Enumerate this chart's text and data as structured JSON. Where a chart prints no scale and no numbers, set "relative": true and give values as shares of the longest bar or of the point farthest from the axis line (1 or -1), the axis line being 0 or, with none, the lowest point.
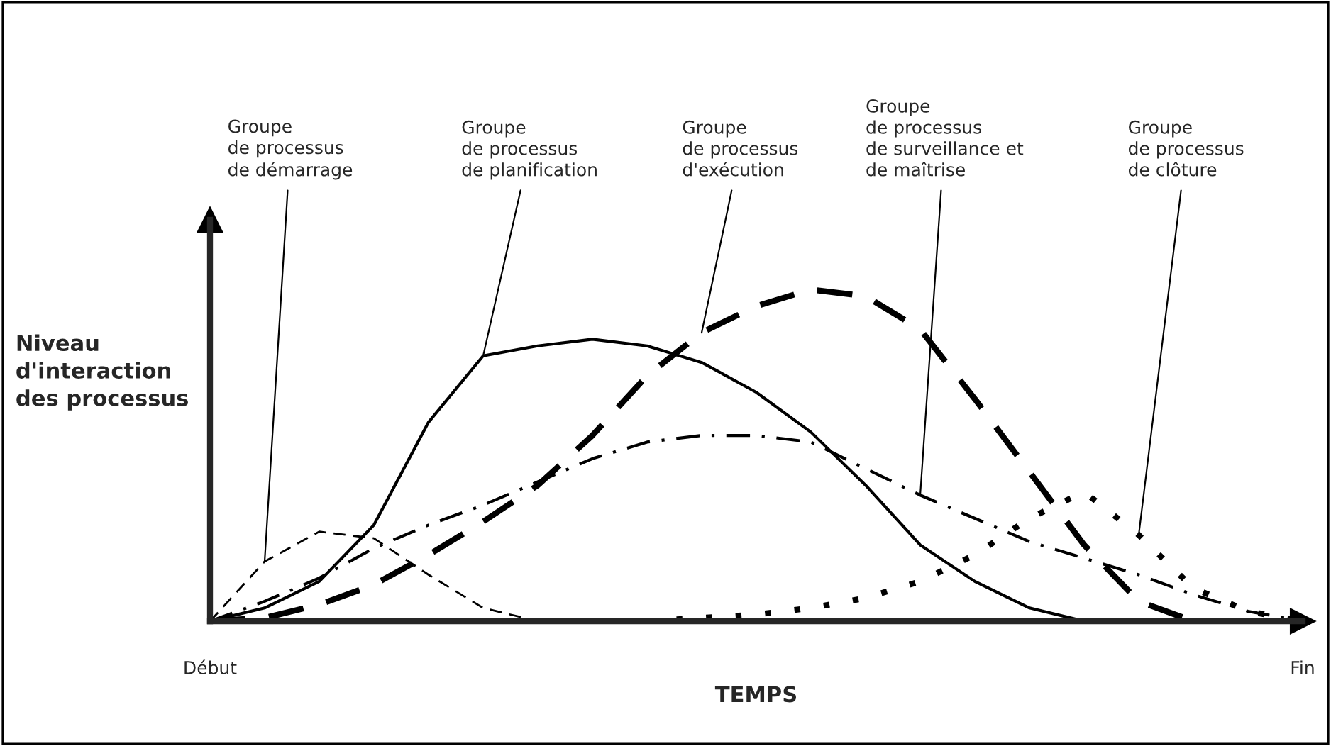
{
  "chart_data": {
    "type": "line",
    "relative": true,
    "xlabel": "TEMPS",
    "ylabel": "Niveau\nd'interaction\ndes processus",
    "categories": [
      "Début",
      null,
      null,
      null,
      null,
      null,
      null,
      null,
      null,
      null,
      null,
      null,
      null,
      null,
      null,
      null,
      null,
      null,
      null,
      null,
      "Fin"
    ],
    "grid": false,
    "marker": "none",
    "series": [
      {
        "color": "#000000",
        "line_style": "dashed",
        "values": [
          0,
          0.18,
          0.27,
          0.25,
          0.14,
          0.04,
          0,
          null,
          null,
          null,
          null,
          null,
          null,
          null,
          null,
          null,
          null,
          null,
          null,
          null,
          null
        ]
      },
      {
        "color": "#000000",
        "line_style": "solid",
        "values": [
          0,
          0.04,
          0.12,
          0.29,
          0.6,
          0.8,
          0.83,
          0.85,
          0.83,
          0.78,
          0.69,
          0.57,
          0.41,
          0.23,
          0.12,
          0.04,
          0,
          null,
          null,
          null,
          null
        ]
      },
      {
        "color": "#000000",
        "line_style": "dashed",
        "values": [
          0,
          0.01,
          0.05,
          0.11,
          0.2,
          0.3,
          0.41,
          0.56,
          0.74,
          0.87,
          0.95,
          1,
          0.98,
          0.88,
          0.67,
          0.45,
          0.23,
          0.06,
          0,
          null,
          null
        ]
      },
      {
        "color": "#000000",
        "line_style": "dashdot",
        "values": [
          0,
          0.06,
          0.13,
          0.22,
          0.29,
          0.35,
          0.42,
          0.49,
          0.54,
          0.56,
          0.56,
          0.54,
          0.46,
          0.38,
          0.31,
          0.24,
          0.19,
          0.14,
          0.08,
          0.03,
          0
        ]
      },
      {
        "color": "#000000",
        "line_style": "dotted",
        "values": [
          null,
          null,
          null,
          null,
          null,
          null,
          null,
          null,
          0,
          0.01,
          0.02,
          0.04,
          0.07,
          0.12,
          0.2,
          0.31,
          0.39,
          0.26,
          0.1,
          0.03,
          0
        ]
      }
    ],
    "annotations": [
      "Groupe\nde processus\nde démarrage",
      "Groupe\nde processus\nde planification",
      "Groupe\nde processus\nd'exécution",
      "Groupe\nde processus\nde surveillance et\nde maîtrise",
      "Groupe\nde processus\nde clôture"
    ]
  }
}
